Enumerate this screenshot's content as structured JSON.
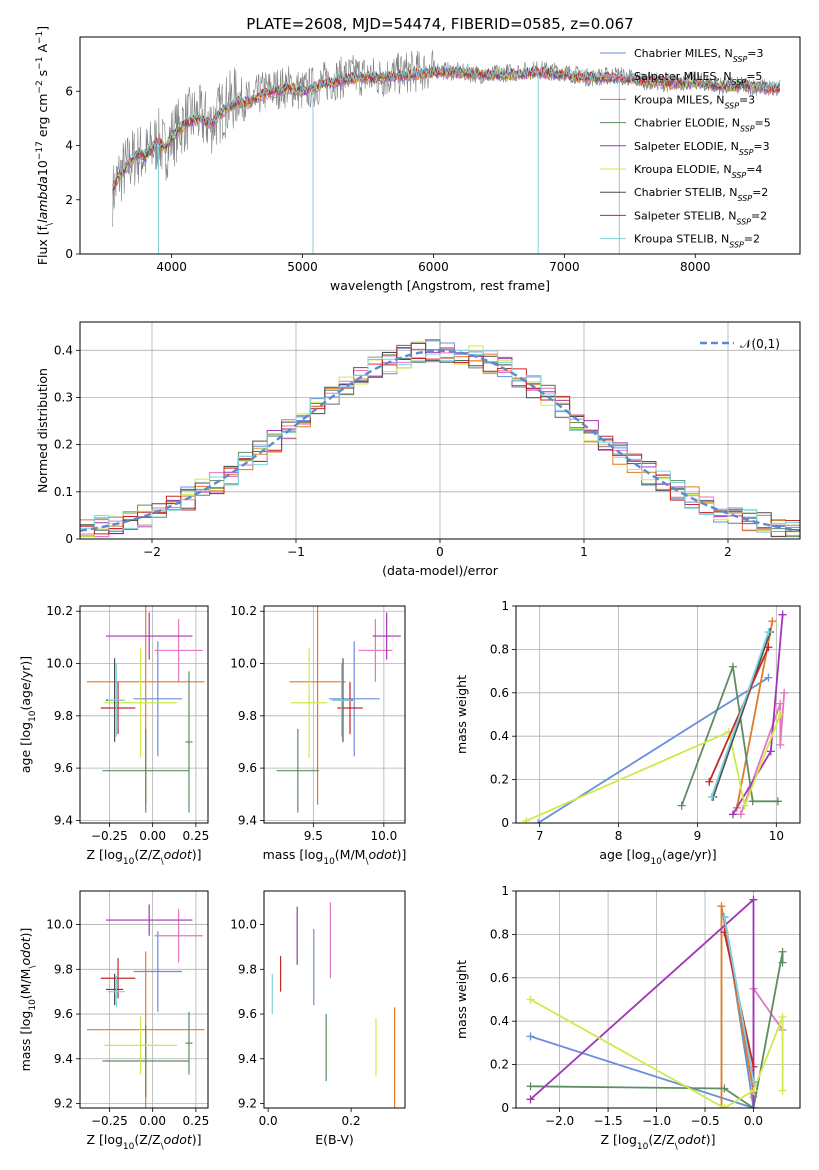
{
  "figure_title": "PLATE=2608, MJD=54474, FIBERID=0585, z=0.067",
  "models": [
    {
      "label": "Chabrier MILES, N$_{SSP}$=3",
      "name": "Chabrier MILES",
      "nssp": "3",
      "color": "#6a8fd8"
    },
    {
      "label": "Salpeter MILES, N$_{SSP}$=5",
      "name": "Salpeter MILES",
      "nssp": "5",
      "color": "#e377c2"
    },
    {
      "label": "Kroupa MILES, N$_{SSP}$=3",
      "name": "Kroupa MILES",
      "nssp": "3",
      "color": "#e07b27"
    },
    {
      "label": "Chabrier ELODIE, N$_{SSP}$=5",
      "name": "Chabrier ELODIE",
      "nssp": "5",
      "color": "#5f8c63"
    },
    {
      "label": "Salpeter ELODIE, N$_{SSP}$=3",
      "name": "Salpeter ELODIE",
      "nssp": "3",
      "color": "#a335b8"
    },
    {
      "label": "Kroupa ELODIE, N$_{SSP}$=4",
      "name": "Kroupa ELODIE",
      "nssp": "4",
      "color": "#cfe94a"
    },
    {
      "label": "Chabrier STELIB, N$_{SSP}$=2",
      "name": "Chabrier STELIB",
      "nssp": "2",
      "color": "#4d4d4d"
    },
    {
      "label": "Salpeter STELIB, N$_{SSP}$=2",
      "name": "Salpeter STELIB",
      "nssp": "2",
      "color": "#c62828"
    },
    {
      "label": "Kroupa STELIB, N$_{SSP}$=2",
      "name": "Kroupa STELIB",
      "nssp": "2",
      "color": "#7fd3dd"
    }
  ],
  "chart_data": [
    {
      "id": "spectrum",
      "type": "line",
      "xlabel": "wavelength [Angstrom, rest frame]",
      "ylabel": "Flux [f$_\\lambda$10$^{-17}$ erg cm$^{-2}$ s$^{-1}$ A$^{-1}$]",
      "xlim": [
        3300,
        8800
      ],
      "ylim": [
        0,
        8
      ],
      "xticks": [
        4000,
        5000,
        6000,
        7000,
        8000
      ],
      "yticks": [
        0,
        2,
        4,
        6
      ],
      "legend": "right",
      "data_color": "#808080",
      "data_x": [
        3550,
        3600,
        3650,
        3700,
        3750,
        3800,
        3850,
        3900,
        3950,
        4000,
        4100,
        4200,
        4300,
        4400,
        4500,
        4600,
        4700,
        4800,
        4900,
        5000,
        5200,
        5400,
        5600,
        5800,
        6000,
        6200,
        6400,
        6600,
        6800,
        7000,
        7200,
        7400,
        7600,
        7800,
        8000,
        8200,
        8400,
        8600
      ],
      "data_y": [
        2.2,
        2.9,
        3.2,
        3.5,
        3.7,
        3.6,
        3.9,
        4.2,
        3.8,
        4.3,
        4.9,
        5.1,
        4.8,
        5.4,
        5.8,
        5.6,
        6.0,
        6.1,
        6.2,
        6.0,
        6.4,
        6.6,
        6.5,
        6.7,
        6.8,
        6.7,
        6.6,
        6.7,
        6.8,
        6.7,
        6.5,
        6.6,
        6.4,
        6.3,
        6.4,
        6.2,
        6.2,
        6.1
      ],
      "model_y": [
        2.4,
        2.9,
        3.2,
        3.5,
        3.7,
        3.6,
        3.9,
        4.1,
        3.9,
        4.3,
        4.8,
        5.0,
        4.8,
        5.3,
        5.6,
        5.6,
        5.9,
        6.0,
        6.1,
        6.0,
        6.3,
        6.5,
        6.5,
        6.6,
        6.7,
        6.7,
        6.6,
        6.6,
        6.7,
        6.6,
        6.5,
        6.5,
        6.4,
        6.3,
        6.3,
        6.2,
        6.2,
        6.1
      ],
      "drop_lines": [
        {
          "x": 3900,
          "to_y": 0
        },
        {
          "x": 5080,
          "to_y": 0
        },
        {
          "x": 6800,
          "to_y": 0
        },
        {
          "x": 7420,
          "to_y": 0
        }
      ]
    },
    {
      "id": "residuals",
      "type": "histogram",
      "xlabel": "(data-model)/error",
      "ylabel": "Normed distribution",
      "xlim": [
        -2.5,
        2.5
      ],
      "ylim": [
        0,
        0.46
      ],
      "xticks": [
        -2,
        -1,
        0,
        1,
        2
      ],
      "yticks": [
        0.0,
        0.1,
        0.2,
        0.3,
        0.4
      ],
      "grid": true,
      "legend": "top-right",
      "normal_label": "$\\mathcal{N}(0,1)$",
      "normal_color": "#5b8ad3",
      "bin_width": 0.1,
      "n_bins": 50
    },
    {
      "id": "age_vs_Z",
      "type": "errorbar",
      "xlabel": "Z [log$_{10}$(Z/Z$_\\odot$)]",
      "ylabel": "age  [log$_{10}$(age/yr)]",
      "xlim": [
        -0.42,
        0.32
      ],
      "ylim": [
        9.39,
        10.22
      ],
      "xticks": [
        -0.25,
        0.0,
        0.25
      ],
      "xticklabels": [
        "−0.25",
        "0.00",
        "0.25"
      ],
      "yticks": [
        9.4,
        9.6,
        9.8,
        10.0,
        10.2
      ],
      "yticklabels": [
        "9.4",
        "9.6",
        "9.8",
        "10.0",
        "10.2"
      ],
      "grid": true,
      "points": [
        {
          "model": 0,
          "x": 0.03,
          "xerr": 0.14,
          "y": 9.865,
          "yerr": 0.22
        },
        {
          "model": 1,
          "x": 0.15,
          "xerr": 0.14,
          "y": 10.05,
          "yerr": 0.12
        },
        {
          "model": 2,
          "x": -0.04,
          "xerr": 0.34,
          "y": 9.93,
          "yerr": 0.47
        },
        {
          "model": 3,
          "x": -0.04,
          "xerr": 0.25,
          "y": 9.59,
          "yerr": 0.16
        },
        {
          "model": 4,
          "x": -0.02,
          "xerr": 0.25,
          "y": 10.105,
          "yerr": 0.09
        },
        {
          "model": 5,
          "x": -0.07,
          "xerr": 0.21,
          "y": 9.85,
          "yerr": 0.21
        },
        {
          "model": 6,
          "x": -0.22,
          "xerr": 0.05,
          "y": 9.86,
          "yerr": 0.16
        },
        {
          "model": 7,
          "x": -0.2,
          "xerr": 0.1,
          "y": 9.83,
          "yerr": 0.1
        },
        {
          "model": 8,
          "x": -0.21,
          "xerr": 0.05,
          "y": 9.86,
          "yerr": 0.14
        },
        {
          "model": 3,
          "x": 0.21,
          "xerr": 0.02,
          "y": 9.7,
          "yerr": 0.27
        }
      ]
    },
    {
      "id": "age_vs_mass",
      "type": "errorbar",
      "xlabel": "mass [log$_{10}$(M/M$_\\odot$)]",
      "ylabel": "",
      "xlim": [
        9.15,
        10.15
      ],
      "ylim": [
        9.39,
        10.22
      ],
      "xticks": [
        9.5,
        10.0
      ],
      "xticklabels": [
        "9.5",
        "10.0"
      ],
      "yticks": [
        9.4,
        9.6,
        9.8,
        10.0,
        10.2
      ],
      "yticklabels": [
        "9.4",
        "9.6",
        "9.8",
        "10.0",
        "10.2"
      ],
      "grid": true,
      "points": [
        {
          "model": 0,
          "x": 9.79,
          "xerr": 0.18,
          "y": 9.865,
          "yerr": 0.22
        },
        {
          "model": 1,
          "x": 9.94,
          "xerr": 0.12,
          "y": 10.05,
          "yerr": 0.12
        },
        {
          "model": 2,
          "x": 9.53,
          "xerr": 0.2,
          "y": 9.93,
          "yerr": 0.47
        },
        {
          "model": 3,
          "x": 9.39,
          "xerr": 0.15,
          "y": 9.59,
          "yerr": 0.16
        },
        {
          "model": 4,
          "x": 10.02,
          "xerr": 0.1,
          "y": 10.105,
          "yerr": 0.09
        },
        {
          "model": 5,
          "x": 9.47,
          "xerr": 0.13,
          "y": 9.85,
          "yerr": 0.21
        },
        {
          "model": 6,
          "x": 9.71,
          "xerr": 0.07,
          "y": 9.86,
          "yerr": 0.16
        },
        {
          "model": 7,
          "x": 9.76,
          "xerr": 0.09,
          "y": 9.83,
          "yerr": 0.1
        },
        {
          "model": 8,
          "x": 9.7,
          "xerr": 0.07,
          "y": 9.86,
          "yerr": 0.14
        }
      ]
    },
    {
      "id": "weight_vs_age",
      "type": "line",
      "xlabel": "age  [log$_{10}$(age/yr)]",
      "ylabel": "mass weight",
      "xlim": [
        6.7,
        10.3
      ],
      "ylim": [
        0,
        1
      ],
      "xticks": [
        7,
        8,
        9,
        10
      ],
      "yticks": [
        0.0,
        0.2,
        0.4,
        0.6,
        0.8,
        1.0
      ],
      "grid": true,
      "series": [
        {
          "model": 0,
          "x": [
            6.98,
            9.9
          ],
          "y": [
            0.0,
            0.67
          ]
        },
        {
          "model": 1,
          "x": [
            9.55,
            10.05,
            10.05,
            10.1
          ],
          "y": [
            0.04,
            0.55,
            0.36,
            0.6
          ]
        },
        {
          "model": 2,
          "x": [
            9.5,
            9.95
          ],
          "y": [
            0.07,
            0.93
          ]
        },
        {
          "model": 3,
          "x": [
            8.8,
            9.45,
            9.7,
            10.02
          ],
          "y": [
            0.08,
            0.72,
            0.1,
            0.1
          ]
        },
        {
          "model": 4,
          "x": [
            9.45,
            9.93,
            10.08
          ],
          "y": [
            0.04,
            0.33,
            0.96
          ]
        },
        {
          "model": 5,
          "x": [
            6.83,
            9.4,
            9.6,
            10.05
          ],
          "y": [
            0.01,
            0.42,
            0.08,
            0.5
          ]
        },
        {
          "model": 6,
          "x": [
            9.2,
            9.92
          ],
          "y": [
            0.12,
            0.88
          ]
        },
        {
          "model": 7,
          "x": [
            9.15,
            9.9
          ],
          "y": [
            0.19,
            0.81
          ]
        },
        {
          "model": 8,
          "x": [
            9.18,
            9.9
          ],
          "y": [
            0.12,
            0.88
          ]
        }
      ]
    },
    {
      "id": "mass_vs_Z",
      "type": "errorbar",
      "xlabel": "Z [log$_{10}$(Z/Z$_\\odot$)]",
      "ylabel": "mass [log$_{10}$(M/M$_\\odot$)]",
      "xlim": [
        -0.42,
        0.32
      ],
      "ylim": [
        9.18,
        10.15
      ],
      "xticks": [
        -0.25,
        0.0,
        0.25
      ],
      "xticklabels": [
        "−0.25",
        "0.00",
        "0.25"
      ],
      "yticks": [
        9.2,
        9.4,
        9.6,
        9.8,
        10.0
      ],
      "yticklabels": [
        "9.2",
        "9.4",
        "9.6",
        "9.8",
        "10.0"
      ],
      "grid": true,
      "points": [
        {
          "model": 0,
          "x": 0.03,
          "xerr": 0.14,
          "y": 9.79,
          "yerr": 0.18
        },
        {
          "model": 1,
          "x": 0.15,
          "xerr": 0.14,
          "y": 9.95,
          "yerr": 0.12
        },
        {
          "model": 2,
          "x": -0.04,
          "xerr": 0.34,
          "y": 9.53,
          "yerr": 0.35
        },
        {
          "model": 3,
          "x": -0.04,
          "xerr": 0.25,
          "y": 9.39,
          "yerr": 0.16
        },
        {
          "model": 4,
          "x": -0.02,
          "xerr": 0.25,
          "y": 10.02,
          "yerr": 0.07
        },
        {
          "model": 5,
          "x": -0.07,
          "xerr": 0.21,
          "y": 9.46,
          "yerr": 0.13
        },
        {
          "model": 6,
          "x": -0.22,
          "xerr": 0.05,
          "y": 9.71,
          "yerr": 0.07
        },
        {
          "model": 7,
          "x": -0.2,
          "xerr": 0.1,
          "y": 9.76,
          "yerr": 0.09
        },
        {
          "model": 8,
          "x": -0.21,
          "xerr": 0.05,
          "y": 9.7,
          "yerr": 0.07
        },
        {
          "model": 3,
          "x": 0.21,
          "xerr": 0.02,
          "y": 9.47,
          "yerr": 0.14
        }
      ]
    },
    {
      "id": "mass_vs_EBV",
      "type": "errorbar",
      "xlabel": "E(B-V)",
      "ylabel": "",
      "xlim": [
        -0.01,
        0.33
      ],
      "ylim": [
        9.18,
        10.15
      ],
      "xticks": [
        0.0,
        0.2
      ],
      "xticklabels": [
        "0.0",
        "0.2"
      ],
      "yticks": [
        9.2,
        9.4,
        9.6,
        9.8,
        10.0
      ],
      "yticklabels": [
        "9.2",
        "9.4",
        "9.6",
        "9.8",
        "10.0"
      ],
      "grid": false,
      "points": [
        {
          "model": 8,
          "x": 0.01,
          "xerr": 0,
          "y": 9.69,
          "yerr": 0.09
        },
        {
          "model": 7,
          "x": 0.03,
          "xerr": 0,
          "y": 9.78,
          "yerr": 0.08
        },
        {
          "model": 4,
          "x": 0.07,
          "xerr": 0,
          "y": 9.95,
          "yerr": 0.13
        },
        {
          "model": 0,
          "x": 0.11,
          "xerr": 0,
          "y": 9.81,
          "yerr": 0.17
        },
        {
          "model": 3,
          "x": 0.14,
          "xerr": 0,
          "y": 9.45,
          "yerr": 0.15
        },
        {
          "model": 1,
          "x": 0.15,
          "xerr": 0,
          "y": 9.93,
          "yerr": 0.17
        },
        {
          "model": 5,
          "x": 0.26,
          "xerr": 0,
          "y": 9.45,
          "yerr": 0.13
        },
        {
          "model": 2,
          "x": 0.305,
          "xerr": 0,
          "y": 9.36,
          "yerr": 0.27
        }
      ]
    },
    {
      "id": "weight_vs_Z",
      "type": "line",
      "xlabel": "Z [log$_{10}$(Z/Z$_\\odot$)]",
      "ylabel": "mass weight",
      "xlim": [
        -2.45,
        0.48
      ],
      "ylim": [
        0,
        1
      ],
      "xticks": [
        -2.0,
        -1.5,
        -1.0,
        -0.5,
        0.0
      ],
      "xticklabels": [
        "−2.0",
        "−1.5",
        "−1.0",
        "−0.5",
        "0.0"
      ],
      "yticks": [
        0.0,
        0.2,
        0.4,
        0.6,
        0.8,
        1.0
      ],
      "grid": true,
      "series": [
        {
          "model": 0,
          "x": [
            -2.3,
            0.0,
            -0.3,
            0.0
          ],
          "y": [
            0.33,
            0.0,
            0.88,
            0.12
          ]
        },
        {
          "model": 1,
          "x": [
            0.0,
            0.0,
            0.3
          ],
          "y": [
            0.05,
            0.55,
            0.36
          ]
        },
        {
          "model": 2,
          "x": [
            -0.33,
            -0.33,
            0.0
          ],
          "y": [
            0.0,
            0.93,
            0.07
          ]
        },
        {
          "model": 3,
          "x": [
            -2.3,
            -0.3,
            0.0,
            0.3,
            0.3
          ],
          "y": [
            0.1,
            0.09,
            0.0,
            0.72,
            0.67
          ]
        },
        {
          "model": 4,
          "x": [
            -2.3,
            0.0,
            0.0
          ],
          "y": [
            0.04,
            0.96,
            0.0
          ]
        },
        {
          "model": 5,
          "x": [
            -2.3,
            -0.3,
            0.0,
            0.3,
            0.3
          ],
          "y": [
            0.5,
            0.0,
            0.08,
            0.42,
            0.08
          ]
        },
        {
          "model": 6,
          "x": [
            -0.3,
            0.0
          ],
          "y": [
            0.88,
            0.12
          ]
        },
        {
          "model": 7,
          "x": [
            -0.3,
            0.0
          ],
          "y": [
            0.81,
            0.19
          ]
        },
        {
          "model": 8,
          "x": [
            -0.3,
            0.0
          ],
          "y": [
            0.88,
            0.12
          ]
        }
      ]
    }
  ]
}
